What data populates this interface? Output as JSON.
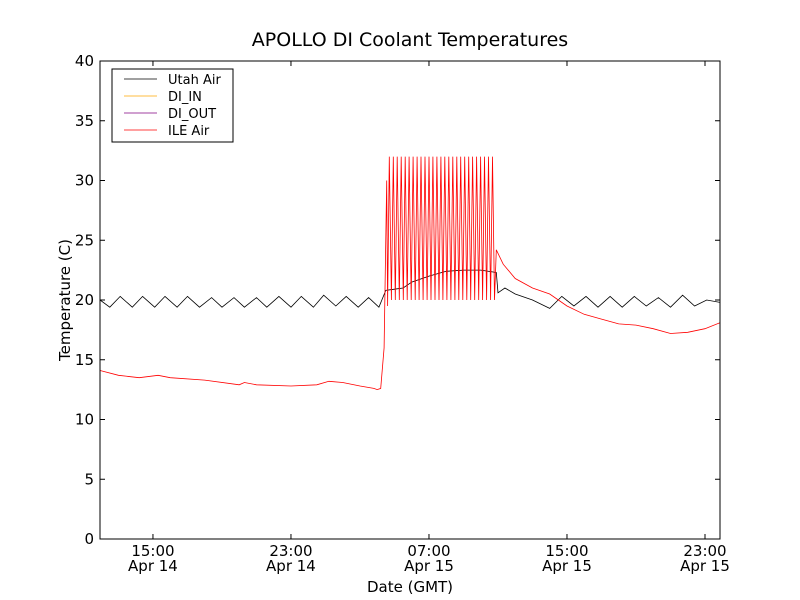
{
  "chart_data": {
    "type": "line",
    "title": "APOLLO DI Coolant Temperatures",
    "xlabel": "Date (GMT)",
    "ylabel": "Temperature (C)",
    "x_units": "hours since Apr 14 00:00",
    "xlim": [
      11.93,
      47.87
    ],
    "ylim": [
      0,
      40
    ],
    "yticks": [
      0,
      5,
      10,
      15,
      20,
      25,
      30,
      35,
      40
    ],
    "xticks": [
      {
        "v": 15,
        "l1": "15:00",
        "l2": "Apr 14"
      },
      {
        "v": 23,
        "l1": "23:00",
        "l2": "Apr 14"
      },
      {
        "v": 31,
        "l1": "07:00",
        "l2": "Apr 15"
      },
      {
        "v": 39,
        "l1": "15:00",
        "l2": "Apr 15"
      },
      {
        "v": 47,
        "l1": "23:00",
        "l2": "Apr 15"
      }
    ],
    "grid": false,
    "legend_position": "top-left",
    "series": [
      {
        "name": "Utah Air",
        "color": "#000000",
        "points": [
          [
            11.93,
            20.0
          ],
          [
            12.5,
            19.4
          ],
          [
            13.1,
            20.3
          ],
          [
            13.8,
            19.4
          ],
          [
            14.4,
            20.3
          ],
          [
            15.1,
            19.4
          ],
          [
            15.7,
            20.3
          ],
          [
            16.4,
            19.4
          ],
          [
            17.0,
            20.3
          ],
          [
            17.7,
            19.4
          ],
          [
            18.4,
            20.2
          ],
          [
            19.0,
            19.4
          ],
          [
            19.7,
            20.2
          ],
          [
            20.3,
            19.4
          ],
          [
            21.0,
            20.2
          ],
          [
            21.6,
            19.4
          ],
          [
            22.3,
            20.3
          ],
          [
            23.0,
            19.4
          ],
          [
            23.6,
            20.3
          ],
          [
            24.3,
            19.4
          ],
          [
            24.9,
            20.4
          ],
          [
            25.6,
            19.5
          ],
          [
            26.2,
            20.3
          ],
          [
            26.9,
            19.4
          ],
          [
            27.5,
            20.2
          ],
          [
            28.1,
            19.4
          ],
          [
            28.5,
            20.8
          ],
          [
            29.0,
            20.9
          ],
          [
            29.5,
            21.0
          ],
          [
            30.0,
            21.5
          ],
          [
            31.0,
            22.0
          ],
          [
            32.0,
            22.4
          ],
          [
            33.0,
            22.5
          ],
          [
            34.0,
            22.5
          ],
          [
            34.9,
            22.3
          ],
          [
            35.0,
            20.6
          ],
          [
            35.4,
            21.0
          ],
          [
            36.0,
            20.5
          ],
          [
            37.0,
            20.0
          ],
          [
            38.0,
            19.3
          ],
          [
            38.7,
            20.3
          ],
          [
            39.4,
            19.5
          ],
          [
            40.1,
            20.3
          ],
          [
            40.8,
            19.4
          ],
          [
            41.5,
            20.3
          ],
          [
            42.2,
            19.4
          ],
          [
            42.9,
            20.3
          ],
          [
            43.6,
            19.5
          ],
          [
            44.3,
            20.2
          ],
          [
            45.0,
            19.4
          ],
          [
            45.7,
            20.4
          ],
          [
            46.4,
            19.5
          ],
          [
            47.1,
            20.0
          ],
          [
            47.87,
            19.8
          ]
        ]
      },
      {
        "name": "DI_IN",
        "color": "#ffa500",
        "points": []
      },
      {
        "name": "DI_OUT",
        "color": "#800080",
        "points": []
      },
      {
        "name": "ILE Air",
        "color": "#ff0000",
        "points": [
          [
            11.93,
            14.1
          ],
          [
            13.0,
            13.7
          ],
          [
            14.2,
            13.5
          ],
          [
            15.3,
            13.7
          ],
          [
            16.0,
            13.5
          ],
          [
            18.0,
            13.3
          ],
          [
            20.0,
            12.9
          ],
          [
            20.3,
            13.1
          ],
          [
            21.0,
            12.9
          ],
          [
            23.0,
            12.8
          ],
          [
            24.5,
            12.9
          ],
          [
            25.2,
            13.2
          ],
          [
            26.0,
            13.1
          ],
          [
            27.0,
            12.8
          ],
          [
            27.8,
            12.6
          ],
          [
            28.0,
            12.5
          ],
          [
            28.2,
            12.6
          ],
          [
            28.4,
            16.0
          ],
          [
            28.55,
            30.0
          ],
          [
            28.6,
            19.5
          ],
          [
            28.7,
            32
          ],
          [
            28.82,
            20
          ],
          [
            28.93,
            32
          ],
          [
            29.05,
            20
          ],
          [
            29.16,
            32
          ],
          [
            29.28,
            20
          ],
          [
            29.39,
            32
          ],
          [
            29.51,
            20
          ],
          [
            29.62,
            32
          ],
          [
            29.74,
            20
          ],
          [
            29.85,
            32
          ],
          [
            29.97,
            20
          ],
          [
            30.08,
            32
          ],
          [
            30.2,
            20
          ],
          [
            30.31,
            32
          ],
          [
            30.43,
            20
          ],
          [
            30.54,
            32
          ],
          [
            30.66,
            20
          ],
          [
            30.77,
            32
          ],
          [
            30.89,
            20
          ],
          [
            31.0,
            32
          ],
          [
            31.12,
            20
          ],
          [
            31.23,
            32
          ],
          [
            31.35,
            20
          ],
          [
            31.46,
            32
          ],
          [
            31.58,
            20
          ],
          [
            31.69,
            32
          ],
          [
            31.81,
            20
          ],
          [
            31.92,
            32
          ],
          [
            32.04,
            20
          ],
          [
            32.15,
            32
          ],
          [
            32.27,
            20
          ],
          [
            32.38,
            32
          ],
          [
            32.5,
            20
          ],
          [
            32.61,
            32
          ],
          [
            32.73,
            20
          ],
          [
            32.84,
            32
          ],
          [
            32.96,
            20
          ],
          [
            33.07,
            32
          ],
          [
            33.19,
            20
          ],
          [
            33.3,
            32
          ],
          [
            33.42,
            20
          ],
          [
            33.53,
            32
          ],
          [
            33.65,
            20
          ],
          [
            33.76,
            32
          ],
          [
            33.88,
            20
          ],
          [
            33.99,
            32
          ],
          [
            34.11,
            20
          ],
          [
            34.22,
            32
          ],
          [
            34.34,
            20
          ],
          [
            34.45,
            32
          ],
          [
            34.57,
            20
          ],
          [
            34.68,
            32
          ],
          [
            34.8,
            20
          ],
          [
            34.9,
            24.2
          ],
          [
            35.3,
            23.0
          ],
          [
            36.0,
            21.8
          ],
          [
            37.0,
            21.0
          ],
          [
            38.0,
            20.5
          ],
          [
            39.0,
            19.5
          ],
          [
            40.0,
            18.8
          ],
          [
            41.0,
            18.4
          ],
          [
            42.0,
            18.0
          ],
          [
            43.0,
            17.9
          ],
          [
            44.0,
            17.6
          ],
          [
            45.0,
            17.2
          ],
          [
            46.0,
            17.3
          ],
          [
            47.0,
            17.6
          ],
          [
            47.87,
            18.1
          ]
        ]
      }
    ]
  }
}
